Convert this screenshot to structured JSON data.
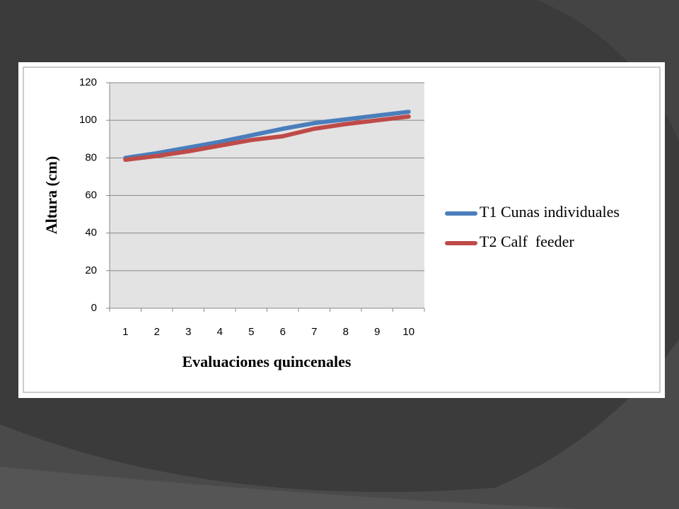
{
  "chart_data": {
    "type": "line",
    "x_label": "Evaluaciones quincenales",
    "y_label": "Altura (cm)",
    "categories": [
      "1",
      "2",
      "3",
      "4",
      "5",
      "6",
      "7",
      "8",
      "9",
      "10"
    ],
    "series": [
      {
        "name": "T1 Cunas individuales",
        "color": "#4a7ebb",
        "values": [
          80,
          82.5,
          85.5,
          88.5,
          92,
          95.5,
          98.5,
          100.5,
          102.5,
          104.5
        ]
      },
      {
        "name": "T2 Calf  feeder",
        "color": "#be4b48",
        "values": [
          79,
          81,
          83.5,
          86.5,
          89.5,
          91.5,
          95.5,
          98,
          100,
          102
        ]
      }
    ],
    "ylim": [
      0,
      120
    ],
    "yticks": [
      0,
      20,
      40,
      60,
      80,
      100,
      120
    ],
    "grid": true
  }
}
